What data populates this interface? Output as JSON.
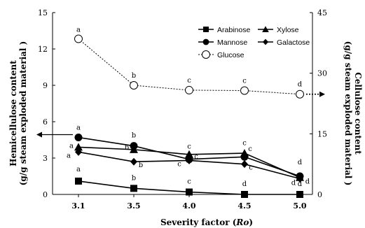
{
  "chart_data": {
    "type": "line",
    "xlabel": "Severity factor (Ro)",
    "xlabel_main": "Severity factor (",
    "xlabel_italic": "Ro",
    "xlabel_close": ")",
    "ylabel_left": [
      "Hemicellulose content",
      "(g/g steam exploded material )"
    ],
    "ylabel_right": [
      "Cellulose content",
      "(g/g steam exploded material )"
    ],
    "categories": [
      "3.1",
      "3.5",
      "4.0",
      "4.5",
      "5.0"
    ],
    "ylim_left": [
      0,
      15
    ],
    "yticks_left": [
      "0",
      "3",
      "6",
      "9",
      "12",
      "15"
    ],
    "ylim_right": [
      0,
      45
    ],
    "yticks_right": [
      "0",
      "15",
      "30",
      "45"
    ],
    "legend": [
      "Arabinose",
      "Xylose",
      "Mannose",
      "Galactose",
      "Glucose"
    ],
    "series": [
      {
        "name": "Arabinose",
        "axis": "left",
        "marker": "square",
        "values": [
          1.1,
          0.5,
          0.2,
          0.0,
          0.0
        ],
        "labels": [
          "a",
          "b",
          "c",
          "d",
          "d"
        ]
      },
      {
        "name": "Xylose",
        "axis": "left",
        "marker": "triangle",
        "values": [
          3.9,
          3.7,
          3.3,
          3.4,
          1.4
        ],
        "labels": [
          "a",
          "b",
          "c",
          "c",
          "d"
        ]
      },
      {
        "name": "Mannose",
        "axis": "left",
        "marker": "circle",
        "values": [
          4.7,
          4.0,
          2.9,
          3.1,
          1.5
        ],
        "labels": [
          "a",
          "b",
          "c",
          "c",
          "d"
        ]
      },
      {
        "name": "Galactose",
        "axis": "left",
        "marker": "diamond",
        "values": [
          3.5,
          2.7,
          2.8,
          2.5,
          1.3
        ],
        "labels": [
          "a",
          "b",
          "c",
          "c",
          "d"
        ]
      },
      {
        "name": "Glucose",
        "axis": "right",
        "marker": "open-circle",
        "values": [
          38.5,
          27.0,
          25.8,
          25.7,
          24.8
        ],
        "labels": [
          "a",
          "b",
          "c",
          "c",
          "d"
        ]
      }
    ]
  }
}
